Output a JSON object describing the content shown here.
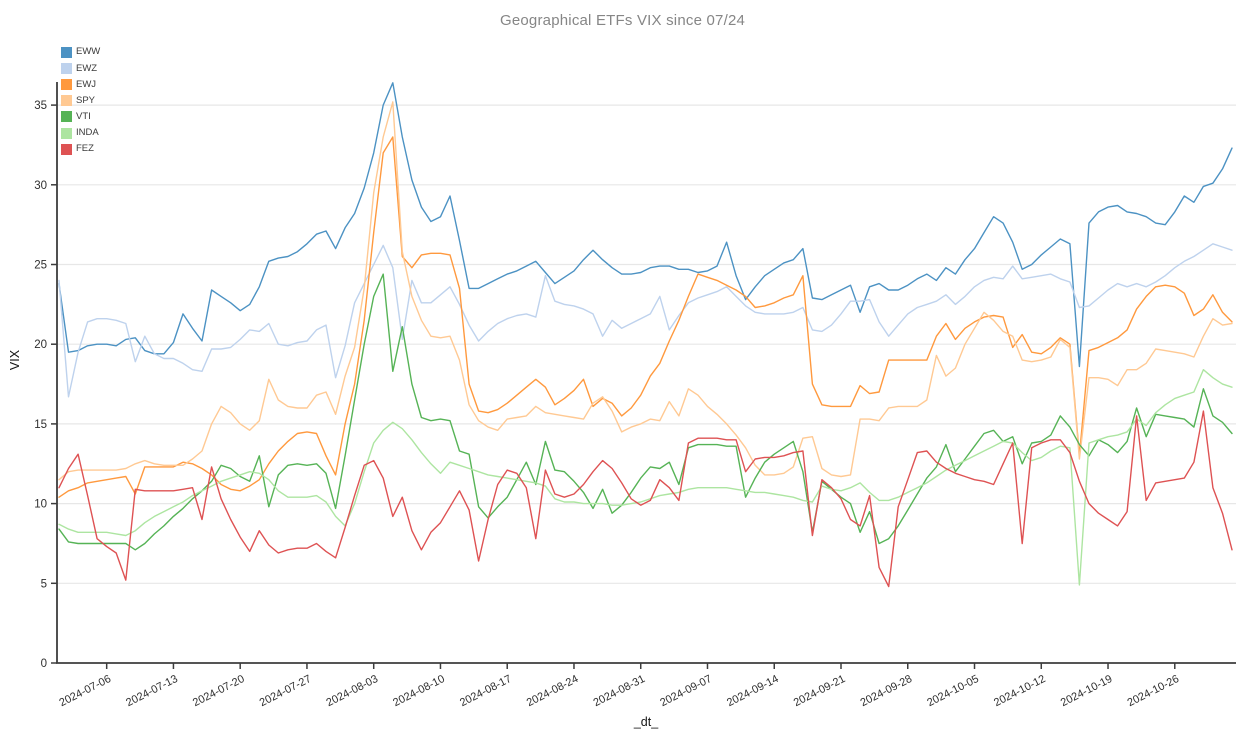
{
  "title": "Geographical ETFs VIX since 07/24",
  "chart_data": {
    "type": "line",
    "title": "Geographical ETFs VIX since 07/24",
    "xlabel": "_dt_",
    "ylabel": "VIX",
    "ylim": [
      0,
      36.5
    ],
    "yticks": [
      0,
      5,
      10,
      15,
      20,
      25,
      30,
      35
    ],
    "grid": true,
    "legend_position": "top-left",
    "x": [
      "2024-07-01",
      "2024-07-02",
      "2024-07-03",
      "2024-07-04",
      "2024-07-05",
      "2024-07-06",
      "2024-07-07",
      "2024-07-08",
      "2024-07-09",
      "2024-07-10",
      "2024-07-11",
      "2024-07-12",
      "2024-07-13",
      "2024-07-14",
      "2024-07-15",
      "2024-07-16",
      "2024-07-17",
      "2024-07-18",
      "2024-07-19",
      "2024-07-20",
      "2024-07-21",
      "2024-07-22",
      "2024-07-23",
      "2024-07-24",
      "2024-07-25",
      "2024-07-26",
      "2024-07-27",
      "2024-07-28",
      "2024-07-29",
      "2024-07-30",
      "2024-07-31",
      "2024-08-01",
      "2024-08-02",
      "2024-08-03",
      "2024-08-04",
      "2024-08-05",
      "2024-08-06",
      "2024-08-07",
      "2024-08-08",
      "2024-08-09",
      "2024-08-10",
      "2024-08-11",
      "2024-08-12",
      "2024-08-13",
      "2024-08-14",
      "2024-08-15",
      "2024-08-16",
      "2024-08-17",
      "2024-08-18",
      "2024-08-19",
      "2024-08-20",
      "2024-08-21",
      "2024-08-22",
      "2024-08-23",
      "2024-08-24",
      "2024-08-25",
      "2024-08-26",
      "2024-08-27",
      "2024-08-28",
      "2024-08-29",
      "2024-08-30",
      "2024-08-31",
      "2024-09-01",
      "2024-09-02",
      "2024-09-03",
      "2024-09-04",
      "2024-09-05",
      "2024-09-06",
      "2024-09-07",
      "2024-09-08",
      "2024-09-09",
      "2024-09-10",
      "2024-09-11",
      "2024-09-12",
      "2024-09-13",
      "2024-09-14",
      "2024-09-15",
      "2024-09-16",
      "2024-09-17",
      "2024-09-18",
      "2024-09-19",
      "2024-09-20",
      "2024-09-21",
      "2024-09-22",
      "2024-09-23",
      "2024-09-24",
      "2024-09-25",
      "2024-09-26",
      "2024-09-27",
      "2024-09-28",
      "2024-09-29",
      "2024-09-30",
      "2024-10-01",
      "2024-10-02",
      "2024-10-03",
      "2024-10-04",
      "2024-10-05",
      "2024-10-06",
      "2024-10-07",
      "2024-10-08",
      "2024-10-09",
      "2024-10-10",
      "2024-10-11",
      "2024-10-12",
      "2024-10-13",
      "2024-10-14",
      "2024-10-15",
      "2024-10-16",
      "2024-10-17",
      "2024-10-18",
      "2024-10-19",
      "2024-10-20",
      "2024-10-21",
      "2024-10-22",
      "2024-10-23",
      "2024-10-24",
      "2024-10-25",
      "2024-10-26",
      "2024-10-27",
      "2024-10-28",
      "2024-10-29",
      "2024-10-30",
      "2024-10-31",
      "2024-11-01"
    ],
    "xtick_labels": [
      "2024-07-06",
      "2024-07-13",
      "2024-07-20",
      "2024-07-27",
      "2024-08-03",
      "2024-08-10",
      "2024-08-17",
      "2024-08-24",
      "2024-08-31",
      "2024-09-07",
      "2024-09-14",
      "2024-09-21",
      "2024-09-28",
      "2024-10-05",
      "2024-10-12",
      "2024-10-19",
      "2024-10-26"
    ],
    "series": [
      {
        "name": "EWW",
        "color": "#4c92c3",
        "values": [
          23.8,
          19.5,
          19.6,
          19.9,
          20,
          20,
          19.9,
          20.3,
          20.4,
          19.6,
          19.4,
          19.4,
          20.1,
          21.9,
          21,
          20.2,
          23.4,
          23,
          22.6,
          22.1,
          22.5,
          23.6,
          25.2,
          25.4,
          25.5,
          25.8,
          26.3,
          26.9,
          27.1,
          26,
          27.3,
          28.2,
          29.8,
          32,
          35,
          36.4,
          33,
          30.3,
          28.6,
          27.7,
          28,
          29.3,
          26.5,
          23.5,
          23.5,
          23.8,
          24.1,
          24.4,
          24.6,
          24.9,
          25.2,
          24.5,
          23.8,
          24.2,
          24.6,
          25.3,
          25.9,
          25.3,
          24.8,
          24.4,
          24.4,
          24.5,
          24.8,
          24.9,
          24.9,
          24.7,
          24.7,
          24.5,
          24.6,
          24.9,
          26.4,
          24.3,
          22.8,
          23.6,
          24.3,
          24.7,
          25.1,
          25.3,
          26,
          22.9,
          22.8,
          23.1,
          23.4,
          23.7,
          22,
          23.6,
          23.8,
          23.4,
          23.4,
          23.7,
          24.1,
          24.4,
          24,
          24.8,
          24.4,
          25.3,
          26,
          27,
          28,
          27.6,
          26.4,
          24.7,
          25,
          25.6,
          26.1,
          26.6,
          26.3,
          18.6,
          27.6,
          28.3,
          28.6,
          28.7,
          28.3,
          28.2,
          28,
          27.6,
          27.5,
          28.3,
          29.3,
          28.9,
          29.9,
          30.1,
          31,
          32.3
        ]
      },
      {
        "name": "EWZ",
        "color": "#bed2ed",
        "values": [
          24,
          16.7,
          19.5,
          21.4,
          21.6,
          21.6,
          21.5,
          21.3,
          18.9,
          20.5,
          19.4,
          19.1,
          19.1,
          18.8,
          18.4,
          18.3,
          19.7,
          19.7,
          19.8,
          20.3,
          20.9,
          20.8,
          21.3,
          20,
          19.9,
          20.1,
          20.2,
          20.9,
          21.2,
          17.9,
          19.9,
          22.6,
          23.8,
          25,
          26.2,
          24.8,
          20.3,
          24,
          22.6,
          22.6,
          23.1,
          23.6,
          22.5,
          21.2,
          20.2,
          20.8,
          21.3,
          21.6,
          21.8,
          21.9,
          21.7,
          24.3,
          22.7,
          22.5,
          22.4,
          22.2,
          21.9,
          20.5,
          21.5,
          21,
          21.3,
          21.6,
          21.9,
          23,
          20.9,
          21.8,
          22.6,
          22.9,
          23.1,
          23.3,
          23.6,
          23,
          22.4,
          22,
          21.9,
          21.9,
          21.9,
          22,
          22.3,
          20.9,
          20.8,
          21.2,
          21.9,
          22.7,
          22.7,
          22.8,
          21.4,
          20.5,
          21.2,
          21.9,
          22.3,
          22.5,
          22.7,
          23.1,
          22.5,
          23,
          23.6,
          24,
          24.2,
          24.1,
          24.9,
          24.1,
          24.2,
          24.3,
          24.4,
          24.1,
          23.9,
          22.3,
          22.4,
          22.9,
          23.4,
          23.8,
          23.6,
          23.8,
          23.6,
          23.9,
          24.3,
          24.8,
          25.2,
          25.5,
          25.9,
          26.3,
          26.1,
          25.9
        ]
      },
      {
        "name": "EWJ",
        "color": "#ff993e",
        "values": [
          10.4,
          10.8,
          11,
          11.3,
          11.4,
          11.5,
          11.6,
          11.7,
          10.6,
          12.3,
          12.3,
          12.3,
          12.3,
          12.6,
          12.5,
          12.2,
          11.8,
          11.2,
          10.9,
          10.8,
          11.1,
          11.5,
          12.5,
          13.3,
          13.9,
          14.4,
          14.5,
          14.4,
          13,
          11.8,
          15,
          17.5,
          21.5,
          27,
          32,
          33,
          25.5,
          24.8,
          25.6,
          25.7,
          25.7,
          25.6,
          23.5,
          17.5,
          15.8,
          15.7,
          15.9,
          16.3,
          16.8,
          17.3,
          17.8,
          17.3,
          16.2,
          16.6,
          17.1,
          17.8,
          16.1,
          16.6,
          16.3,
          15.5,
          16,
          16.8,
          18,
          18.8,
          20.2,
          21.5,
          23,
          24.4,
          24.2,
          24,
          23.7,
          23.4,
          23,
          22.3,
          22.4,
          22.6,
          22.9,
          23.1,
          24.3,
          17.5,
          16.2,
          16.1,
          16.1,
          16.1,
          17.4,
          16.9,
          17,
          19,
          19,
          19,
          19,
          19,
          20.5,
          21.3,
          20.3,
          21,
          21.4,
          21.7,
          21.8,
          21.7,
          19.8,
          20.6,
          19.5,
          19.4,
          19.8,
          20.4,
          20,
          13,
          19.6,
          19.8,
          20.1,
          20.4,
          20.9,
          22.2,
          23,
          23.6,
          23.7,
          23.6,
          23.2,
          21.8,
          22.2,
          23.1,
          22,
          21.4
        ]
      },
      {
        "name": "SPY",
        "color": "#ffc993",
        "values": [
          11.5,
          12,
          12.1,
          12.1,
          12.1,
          12.1,
          12.1,
          12.2,
          12.5,
          12.7,
          12.5,
          12.4,
          12.4,
          12.4,
          12.8,
          13.3,
          15,
          16.1,
          15.7,
          15,
          14.6,
          15.2,
          17.8,
          16.5,
          16.1,
          16,
          16,
          16.8,
          17,
          15.6,
          18,
          19.8,
          23.5,
          29.5,
          33,
          35.2,
          25.8,
          23,
          21.5,
          20.5,
          20.4,
          20.5,
          19,
          16.2,
          15.2,
          14.8,
          14.6,
          15.3,
          15.4,
          15.5,
          16.1,
          15.7,
          15.6,
          15.5,
          15.4,
          15.3,
          16.3,
          16.7,
          15.8,
          14.5,
          14.8,
          15,
          15.3,
          15.2,
          16.4,
          15.5,
          17.2,
          16.8,
          16.1,
          15.6,
          15,
          14.3,
          13.5,
          12.4,
          11.8,
          11.8,
          11.9,
          12.3,
          14.1,
          14.2,
          12.2,
          11.8,
          11.7,
          11.8,
          15.3,
          15.3,
          15.2,
          16,
          16.1,
          16.1,
          16.1,
          16.5,
          19.3,
          18,
          18.5,
          20,
          21,
          22,
          21.5,
          20.8,
          20.5,
          19,
          18.9,
          19,
          19.2,
          20.3,
          19.8,
          12.8,
          17.9,
          17.9,
          17.8,
          17.4,
          18.4,
          18.4,
          18.8,
          19.7,
          19.6,
          19.5,
          19.4,
          19.2,
          20.5,
          21.6,
          21.2,
          21.3
        ]
      },
      {
        "name": "VTI",
        "color": "#56b356",
        "values": [
          8.4,
          7.6,
          7.5,
          7.5,
          7.5,
          7.5,
          7.5,
          7.5,
          7.1,
          7.5,
          8.1,
          8.6,
          9.2,
          9.7,
          10.3,
          10.8,
          11.4,
          12.4,
          12.2,
          11.7,
          11.4,
          13,
          9.8,
          11.8,
          12.4,
          12.5,
          12.4,
          12.5,
          11.9,
          9.7,
          13,
          16.5,
          20,
          23,
          24.4,
          18.3,
          21.1,
          17.5,
          15.4,
          15.2,
          15.3,
          15.2,
          13.3,
          13.1,
          9.8,
          9.1,
          9.8,
          10.4,
          11.5,
          12.6,
          11.2,
          13.9,
          12.1,
          12,
          11.4,
          10.7,
          9.7,
          10.9,
          9.4,
          9.9,
          10.7,
          11.6,
          12.3,
          12.2,
          12.6,
          11.2,
          13.5,
          13.7,
          13.7,
          13.7,
          13.6,
          13.6,
          10.4,
          11.6,
          12.6,
          13.1,
          13.5,
          13.9,
          12,
          8.2,
          11.4,
          10.9,
          10.4,
          10,
          8.2,
          9.5,
          7.5,
          7.8,
          8.6,
          9.6,
          10.6,
          11.6,
          12.3,
          13.7,
          12,
          12.8,
          13.6,
          14.4,
          14.6,
          13.9,
          14.2,
          12.5,
          13.8,
          13.9,
          14.3,
          15.5,
          14.8,
          13.7,
          13,
          14,
          13.7,
          13.2,
          13.9,
          16,
          14.2,
          15.6,
          15.5,
          15.4,
          15.3,
          14.8,
          17.2,
          15.5,
          15.1,
          14.4
        ]
      },
      {
        "name": "INDA",
        "color": "#ade5a1",
        "values": [
          8.7,
          8.4,
          8.2,
          8.2,
          8.2,
          8.2,
          8.1,
          8,
          8.3,
          8.8,
          9.2,
          9.5,
          9.8,
          10.1,
          10.5,
          10.8,
          11.1,
          11.4,
          11.6,
          11.8,
          12,
          11.9,
          11.5,
          10.8,
          10.4,
          10.4,
          10.4,
          10.5,
          10.1,
          9.2,
          8.6,
          10,
          12,
          13.8,
          14.6,
          15.1,
          14.7,
          14,
          13.2,
          12.5,
          11.9,
          12.6,
          12.4,
          12.2,
          12,
          11.8,
          11.7,
          11.6,
          11.5,
          11.4,
          11.3,
          11.1,
          10.3,
          10.1,
          10.1,
          10,
          10,
          10,
          9.9,
          9.9,
          10,
          10.1,
          10.3,
          10.5,
          10.6,
          10.7,
          10.9,
          11,
          11,
          11,
          11,
          10.9,
          10.8,
          10.7,
          10.7,
          10.6,
          10.5,
          10.4,
          10.2,
          10.1,
          11.1,
          10.9,
          10.8,
          11,
          11.3,
          10.7,
          10.2,
          10.2,
          10.4,
          10.7,
          11,
          11.3,
          11.7,
          12.1,
          12.4,
          12.7,
          13,
          13.3,
          13.6,
          13.9,
          13.8,
          13.2,
          12.7,
          12.9,
          13.3,
          13.6,
          13.5,
          4.9,
          13.8,
          14,
          14.2,
          14.3,
          14.5,
          15.3,
          14.9,
          15.7,
          16.2,
          16.6,
          16.8,
          17,
          18.4,
          17.9,
          17.5,
          17.3
        ]
      },
      {
        "name": "FEZ",
        "color": "#de5253",
        "values": [
          11,
          12.2,
          13.1,
          10.5,
          7.8,
          7.3,
          6.9,
          5.2,
          10.9,
          10.8,
          10.8,
          10.8,
          10.8,
          10.9,
          11,
          9,
          12.3,
          10.3,
          9,
          7.9,
          7,
          8.3,
          7.4,
          6.9,
          7.1,
          7.2,
          7.2,
          7.5,
          7,
          6.6,
          8.5,
          10.5,
          12.4,
          12.7,
          11.6,
          9.2,
          10.4,
          8.3,
          7.1,
          8.2,
          8.8,
          9.8,
          10.8,
          9.6,
          6.4,
          9,
          11.2,
          12.1,
          11.9,
          11,
          7.8,
          12.1,
          10.6,
          10.4,
          10.6,
          11.2,
          12,
          12.7,
          12.2,
          11.3,
          10.3,
          9.9,
          10.2,
          11.5,
          11,
          10.2,
          13.8,
          14.1,
          14.1,
          14.1,
          14,
          14,
          12,
          12.8,
          12.9,
          12.9,
          13,
          13.2,
          13.3,
          8,
          11.5,
          11,
          10.3,
          9,
          8.6,
          10.5,
          6,
          4.8,
          9.8,
          11.5,
          13.2,
          13.3,
          12.6,
          12.2,
          11.9,
          11.7,
          11.5,
          11.4,
          11.2,
          12.5,
          13.8,
          7.5,
          13.5,
          13.8,
          14,
          14,
          13.2,
          11.4,
          10,
          9.4,
          9,
          8.6,
          9.5,
          15.5,
          10.2,
          11.3,
          11.4,
          11.5,
          11.6,
          12.6,
          15.8,
          11,
          9.4,
          7.1
        ]
      }
    ]
  }
}
